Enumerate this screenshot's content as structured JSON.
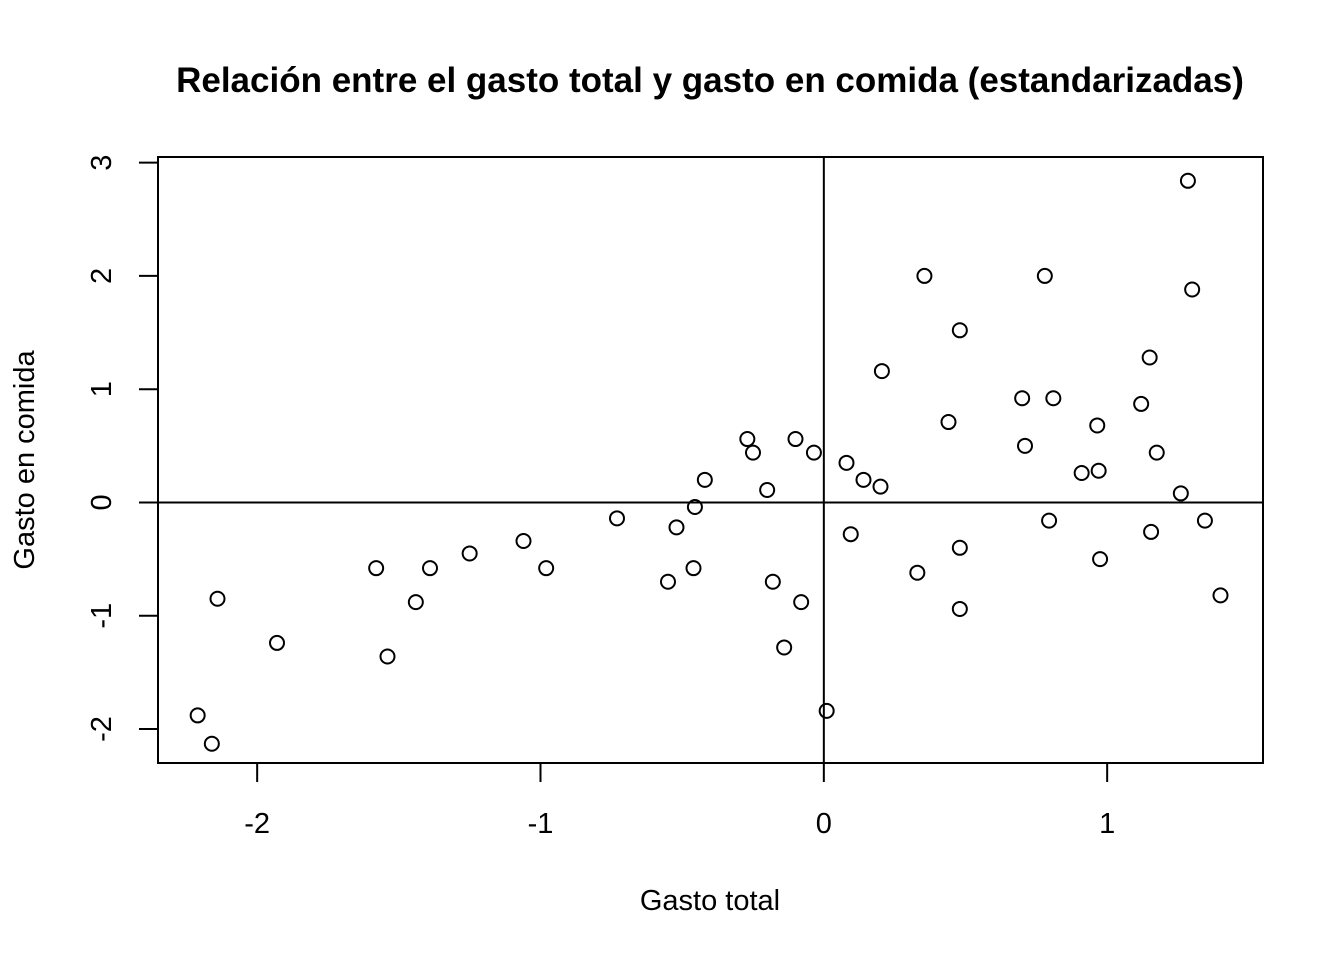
{
  "chart_data": {
    "type": "scatter",
    "title": "Relación entre el gasto total y gasto en comida (estandarizadas)",
    "xlabel": "Gasto total",
    "ylabel": "Gasto en comida",
    "xlim": [
      -2.35,
      1.55
    ],
    "ylim": [
      -2.3,
      3.05
    ],
    "x_ticks": [
      -2,
      -1,
      0,
      1
    ],
    "x_tick_labels": [
      "-2",
      "-1",
      "0",
      "1"
    ],
    "y_ticks": [
      -2,
      -1,
      0,
      1,
      2,
      3
    ],
    "y_tick_labels": [
      "-2",
      "-1",
      "0",
      "1",
      "2",
      "3"
    ],
    "reference_lines": {
      "x": 0,
      "y": 0
    },
    "grid": false,
    "marker": "open-circle",
    "colors": {
      "points": "#000000",
      "axes": "#000000",
      "background": "#ffffff"
    },
    "points": [
      {
        "x": -2.21,
        "y": -1.88
      },
      {
        "x": -2.16,
        "y": -2.13
      },
      {
        "x": -2.14,
        "y": -0.85
      },
      {
        "x": -1.93,
        "y": -1.24
      },
      {
        "x": -1.58,
        "y": -0.58
      },
      {
        "x": -1.54,
        "y": -1.36
      },
      {
        "x": -1.44,
        "y": -0.88
      },
      {
        "x": -1.39,
        "y": -0.58
      },
      {
        "x": -1.25,
        "y": -0.45
      },
      {
        "x": -1.06,
        "y": -0.34
      },
      {
        "x": -0.98,
        "y": -0.58
      },
      {
        "x": -0.73,
        "y": -0.14
      },
      {
        "x": -0.55,
        "y": -0.7
      },
      {
        "x": -0.52,
        "y": -0.22
      },
      {
        "x": -0.46,
        "y": -0.58
      },
      {
        "x": -0.455,
        "y": -0.04
      },
      {
        "x": -0.42,
        "y": 0.2
      },
      {
        "x": -0.27,
        "y": 0.56
      },
      {
        "x": -0.25,
        "y": 0.44
      },
      {
        "x": -0.2,
        "y": 0.11
      },
      {
        "x": -0.18,
        "y": -0.7
      },
      {
        "x": -0.14,
        "y": -1.28
      },
      {
        "x": -0.1,
        "y": 0.56
      },
      {
        "x": -0.08,
        "y": -0.88
      },
      {
        "x": -0.035,
        "y": 0.44
      },
      {
        "x": 0.01,
        "y": -1.84
      },
      {
        "x": 0.08,
        "y": 0.35
      },
      {
        "x": 0.095,
        "y": -0.28
      },
      {
        "x": 0.14,
        "y": 0.2
      },
      {
        "x": 0.2,
        "y": 0.14
      },
      {
        "x": 0.205,
        "y": 1.16
      },
      {
        "x": 0.33,
        "y": -0.62
      },
      {
        "x": 0.355,
        "y": 2.0
      },
      {
        "x": 0.44,
        "y": 0.71
      },
      {
        "x": 0.48,
        "y": 1.52
      },
      {
        "x": 0.48,
        "y": -0.4
      },
      {
        "x": 0.48,
        "y": -0.94
      },
      {
        "x": 0.7,
        "y": 0.92
      },
      {
        "x": 0.71,
        "y": 0.5
      },
      {
        "x": 0.78,
        "y": 2.0
      },
      {
        "x": 0.795,
        "y": -0.16
      },
      {
        "x": 0.81,
        "y": 0.92
      },
      {
        "x": 0.91,
        "y": 0.26
      },
      {
        "x": 0.965,
        "y": 0.68
      },
      {
        "x": 0.97,
        "y": 0.28
      },
      {
        "x": 0.975,
        "y": -0.5
      },
      {
        "x": 1.12,
        "y": 0.87
      },
      {
        "x": 1.15,
        "y": 1.28
      },
      {
        "x": 1.155,
        "y": -0.26
      },
      {
        "x": 1.175,
        "y": 0.44
      },
      {
        "x": 1.26,
        "y": 0.08
      },
      {
        "x": 1.285,
        "y": 2.84
      },
      {
        "x": 1.3,
        "y": 1.88
      },
      {
        "x": 1.345,
        "y": -0.16
      },
      {
        "x": 1.4,
        "y": -0.82
      }
    ]
  }
}
